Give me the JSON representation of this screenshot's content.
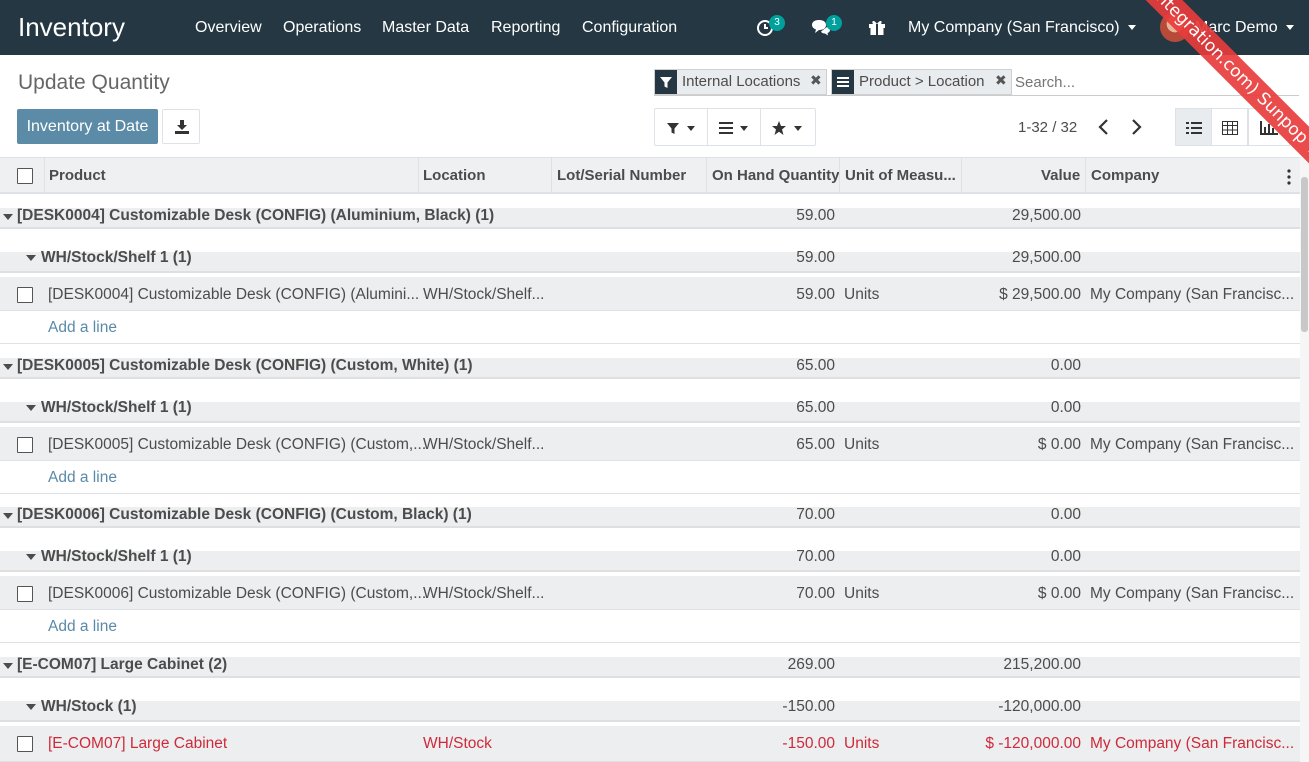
{
  "navbar": {
    "app_title": "Inventory",
    "menu": [
      "Overview",
      "Operations",
      "Master Data",
      "Reporting",
      "Configuration"
    ],
    "activity_count": "3",
    "messages_count": "1",
    "company": "My Company (San Francisco)",
    "user": "Marc Demo"
  },
  "ribbon": "(demo.hintegration.com) Sunpop Test",
  "control_panel": {
    "title": "Update Quantity",
    "inventory_at_date": "Inventory at Date",
    "facets": [
      {
        "label": "Internal Locations",
        "icon": "filter-icon"
      },
      {
        "label": "Product > Location",
        "icon": "groupby-icon"
      }
    ],
    "search_placeholder": "Search...",
    "pager": "1-32 / 32"
  },
  "table": {
    "columns": [
      "Product",
      "Location",
      "Lot/Serial Number",
      "On Hand Quantity",
      "Unit of Measu...",
      "Value",
      "Company"
    ],
    "add_line": "Add a line",
    "groups": [
      {
        "label": "[DESK0004] Customizable Desk (CONFIG) (Aluminium, Black) (1)",
        "qty": "59.00",
        "value": "29,500.00",
        "sub": {
          "label": "WH/Stock/Shelf 1 (1)",
          "qty": "59.00",
          "value": "29,500.00",
          "record": {
            "product": "[DESK0004] Customizable Desk (CONFIG) (Alumini...",
            "location": "WH/Stock/Shelf...",
            "qty": "59.00",
            "uom": "Units",
            "value": "$ 29,500.00",
            "company": "My Company (San Francisc...",
            "negative": false
          }
        }
      },
      {
        "label": "[DESK0005] Customizable Desk (CONFIG) (Custom, White) (1)",
        "qty": "65.00",
        "value": "0.00",
        "sub": {
          "label": "WH/Stock/Shelf 1 (1)",
          "qty": "65.00",
          "value": "0.00",
          "record": {
            "product": "[DESK0005] Customizable Desk (CONFIG) (Custom,...",
            "location": "WH/Stock/Shelf...",
            "qty": "65.00",
            "uom": "Units",
            "value": "$ 0.00",
            "company": "My Company (San Francisc...",
            "negative": false
          }
        }
      },
      {
        "label": "[DESK0006] Customizable Desk (CONFIG) (Custom, Black) (1)",
        "qty": "70.00",
        "value": "0.00",
        "sub": {
          "label": "WH/Stock/Shelf 1 (1)",
          "qty": "70.00",
          "value": "0.00",
          "record": {
            "product": "[DESK0006] Customizable Desk (CONFIG) (Custom,...",
            "location": "WH/Stock/Shelf...",
            "qty": "70.00",
            "uom": "Units",
            "value": "$ 0.00",
            "company": "My Company (San Francisc...",
            "negative": false
          }
        }
      },
      {
        "label": "[E-COM07] Large Cabinet (2)",
        "qty": "269.00",
        "value": "215,200.00",
        "sub": {
          "label": "WH/Stock (1)",
          "qty": "-150.00",
          "value": "-120,000.00",
          "record": {
            "product": "[E-COM07] Large Cabinet",
            "location": "WH/Stock",
            "qty": "-150.00",
            "uom": "Units",
            "value": "$ -120,000.00",
            "company": "My Company (San Francisc...",
            "negative": true
          }
        }
      }
    ]
  },
  "colors": {
    "navbar": "#243742",
    "primary": "#5b8ba6",
    "danger": "#cf2a3a",
    "badge": "#00a09d",
    "link": "#5a8aa8"
  }
}
